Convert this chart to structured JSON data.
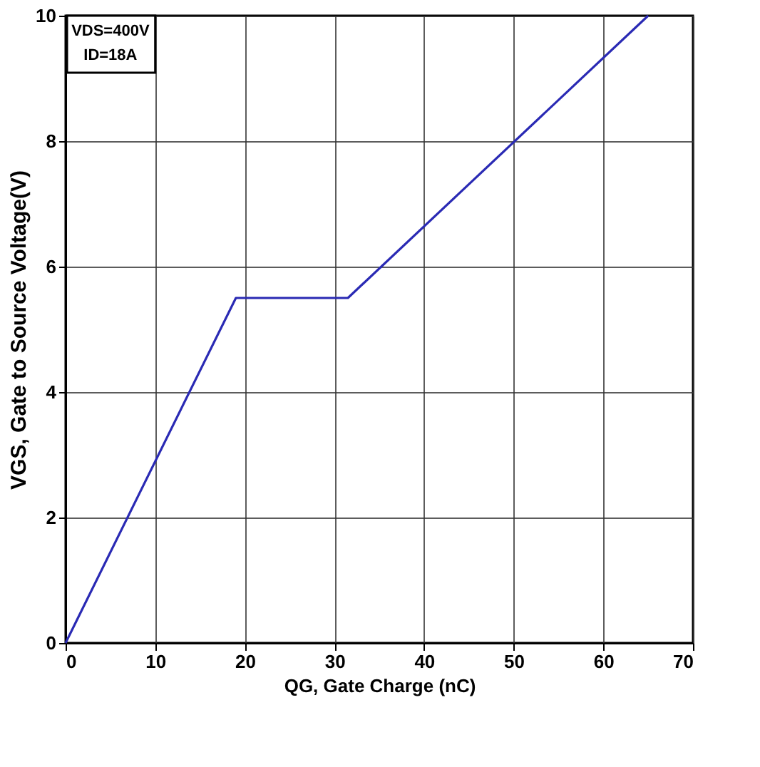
{
  "chart_data": {
    "type": "line",
    "x": [
      0,
      19,
      31.5,
      65
    ],
    "values": [
      0,
      5.5,
      5.5,
      10
    ],
    "color": "#2a2ab4",
    "xlabel": "QG, Gate Charge (nC)",
    "ylabel": "VGS, Gate to Source Voltage(V)",
    "xlim": [
      0,
      70
    ],
    "xticks": [
      0,
      10,
      20,
      30,
      40,
      50,
      60,
      70
    ],
    "ylim": [
      0,
      10
    ],
    "yticks": [
      0,
      2,
      4,
      6,
      8,
      10
    ],
    "grid": true,
    "marker": "none",
    "line_style": "solid",
    "annotations": [
      "VDS=400V",
      "ID=18A"
    ]
  }
}
